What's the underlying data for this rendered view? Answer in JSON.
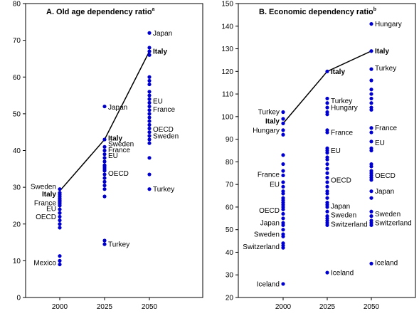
{
  "chart_data": [
    {
      "type": "scatter",
      "title": "A. Old age dependency ratio",
      "title_sup": "a",
      "categories": [
        "2000",
        "2025",
        "2050"
      ],
      "ylim": [
        0,
        80
      ],
      "yticks": [
        0,
        10,
        20,
        30,
        40,
        50,
        60,
        70,
        80
      ],
      "grid": false,
      "line_color": "#000000",
      "point_color": "#0000cc",
      "italy_line": {
        "name": "Italy",
        "values": [
          29,
          43,
          67
        ]
      },
      "points": {
        "2000": [
          9,
          10,
          11.3,
          19,
          20,
          21,
          22,
          23,
          24,
          25,
          25.5,
          26,
          26.5,
          27,
          27.5,
          28,
          28.5,
          29.5
        ],
        "2025": [
          14.5,
          15.5,
          27.5,
          29.5,
          30.5,
          31.5,
          32.5,
          33.5,
          34.5,
          35,
          35.5,
          36,
          37,
          38,
          39,
          40,
          41,
          43,
          52
        ],
        "2050": [
          29.5,
          33.5,
          38,
          42,
          43,
          44,
          45,
          46,
          47,
          48,
          49,
          50,
          51,
          52,
          53,
          54,
          55,
          56,
          58,
          59,
          60,
          66,
          67,
          68,
          72
        ]
      },
      "labels": [
        {
          "text": "Mexico",
          "cat": "2000",
          "y": 9.5,
          "side": "left",
          "bold": false
        },
        {
          "text": "OECD",
          "cat": "2000",
          "y": 22,
          "side": "left",
          "bold": false
        },
        {
          "text": "EU",
          "cat": "2000",
          "y": 24.2,
          "side": "left",
          "bold": false
        },
        {
          "text": "France",
          "cat": "2000",
          "y": 25.8,
          "side": "left",
          "bold": false
        },
        {
          "text": "Italy",
          "cat": "2000",
          "y": 28.2,
          "side": "left",
          "bold": true
        },
        {
          "text": "Sweden",
          "cat": "2000",
          "y": 30.2,
          "side": "left",
          "bold": false
        },
        {
          "text": "Turkey",
          "cat": "2025",
          "y": 14.5,
          "side": "right",
          "bold": false
        },
        {
          "text": "OECD",
          "cat": "2025",
          "y": 33.8,
          "side": "right",
          "bold": false
        },
        {
          "text": "EU",
          "cat": "2025",
          "y": 38.6,
          "side": "right",
          "bold": false
        },
        {
          "text": "France",
          "cat": "2025",
          "y": 40.2,
          "side": "right",
          "bold": false
        },
        {
          "text": "Sweden",
          "cat": "2025",
          "y": 41.8,
          "side": "right",
          "bold": false
        },
        {
          "text": "Italy",
          "cat": "2025",
          "y": 43.4,
          "side": "right",
          "bold": true
        },
        {
          "text": "Japan",
          "cat": "2025",
          "y": 51.8,
          "side": "right",
          "bold": false
        },
        {
          "text": "Turkey",
          "cat": "2050",
          "y": 29.5,
          "side": "right",
          "bold": false
        },
        {
          "text": "Sweden",
          "cat": "2050",
          "y": 44,
          "side": "right",
          "bold": false
        },
        {
          "text": "OECD",
          "cat": "2050",
          "y": 45.8,
          "side": "right",
          "bold": false
        },
        {
          "text": "France",
          "cat": "2050",
          "y": 51.2,
          "side": "right",
          "bold": false
        },
        {
          "text": "EU",
          "cat": "2050",
          "y": 53.5,
          "side": "right",
          "bold": false
        },
        {
          "text": "Italy",
          "cat": "2050",
          "y": 67,
          "side": "right",
          "bold": true
        },
        {
          "text": "Japan",
          "cat": "2050",
          "y": 72,
          "side": "right",
          "bold": false
        }
      ]
    },
    {
      "type": "scatter",
      "title": "B. Economic dependency ratio",
      "title_sup": "b",
      "categories": [
        "2000",
        "2025",
        "2050"
      ],
      "ylim": [
        20,
        150
      ],
      "yticks": [
        20,
        30,
        40,
        50,
        60,
        70,
        80,
        90,
        100,
        110,
        120,
        130,
        140,
        150
      ],
      "grid": false,
      "line_color": "#000000",
      "point_color": "#0000cc",
      "italy_line": {
        "name": "Italy",
        "values": [
          97,
          120,
          129
        ]
      },
      "points": {
        "2000": [
          26,
          42,
          43,
          44,
          47,
          48,
          50,
          52,
          53,
          55,
          57,
          59,
          60,
          61,
          62,
          63,
          64,
          66,
          67,
          69,
          71,
          74,
          76,
          79,
          83,
          92,
          94,
          97,
          99,
          102
        ],
        "2025": [
          31,
          52,
          53,
          54,
          55,
          56,
          58,
          60,
          61,
          62,
          64,
          66,
          67,
          69,
          71,
          73,
          75,
          77,
          79,
          81,
          82,
          84,
          85,
          86,
          93,
          94,
          101,
          102,
          104,
          106,
          108,
          120
        ],
        "2050": [
          35,
          52,
          53,
          54,
          56,
          58,
          64,
          67,
          72,
          73,
          74,
          75,
          76,
          78,
          79,
          85,
          86,
          89,
          93,
          95,
          103,
          104,
          106,
          108,
          110,
          112,
          116,
          121,
          129,
          141
        ]
      },
      "labels": [
        {
          "text": "Iceland",
          "cat": "2000",
          "y": 26,
          "side": "left",
          "bold": false
        },
        {
          "text": "Switzerland",
          "cat": "2000",
          "y": 42.5,
          "side": "left",
          "bold": false
        },
        {
          "text": "Sweden",
          "cat": "2000",
          "y": 48,
          "side": "left",
          "bold": false
        },
        {
          "text": "Japan",
          "cat": "2000",
          "y": 53,
          "side": "left",
          "bold": false
        },
        {
          "text": "OECD",
          "cat": "2000",
          "y": 58.5,
          "side": "left",
          "bold": false
        },
        {
          "text": "EU",
          "cat": "2000",
          "y": 70,
          "side": "left",
          "bold": false
        },
        {
          "text": "France",
          "cat": "2000",
          "y": 74.5,
          "side": "left",
          "bold": false
        },
        {
          "text": "Hungary",
          "cat": "2000",
          "y": 94,
          "side": "left",
          "bold": false
        },
        {
          "text": "Italy",
          "cat": "2000",
          "y": 98,
          "side": "left",
          "bold": true
        },
        {
          "text": "Turkey",
          "cat": "2000",
          "y": 102.2,
          "side": "left",
          "bold": false
        },
        {
          "text": "Iceland",
          "cat": "2025",
          "y": 31,
          "side": "right",
          "bold": false
        },
        {
          "text": "Switzerland",
          "cat": "2025",
          "y": 52.5,
          "side": "right",
          "bold": false
        },
        {
          "text": "Sweden",
          "cat": "2025",
          "y": 56.5,
          "side": "right",
          "bold": false
        },
        {
          "text": "Japan",
          "cat": "2025",
          "y": 60.5,
          "side": "right",
          "bold": false
        },
        {
          "text": "OECD",
          "cat": "2025",
          "y": 72,
          "side": "right",
          "bold": false
        },
        {
          "text": "EU",
          "cat": "2025",
          "y": 85,
          "side": "right",
          "bold": false
        },
        {
          "text": "France",
          "cat": "2025",
          "y": 93,
          "side": "right",
          "bold": false
        },
        {
          "text": "Hungary",
          "cat": "2025",
          "y": 104,
          "side": "right",
          "bold": false
        },
        {
          "text": "Turkey",
          "cat": "2025",
          "y": 107,
          "side": "right",
          "bold": false
        },
        {
          "text": "Italy",
          "cat": "2025",
          "y": 120,
          "side": "right",
          "bold": true
        },
        {
          "text": "Iceland",
          "cat": "2050",
          "y": 35.5,
          "side": "right",
          "bold": false
        },
        {
          "text": "Switzerland",
          "cat": "2050",
          "y": 53,
          "side": "right",
          "bold": false
        },
        {
          "text": "Sweden",
          "cat": "2050",
          "y": 57,
          "side": "right",
          "bold": false
        },
        {
          "text": "Japan",
          "cat": "2050",
          "y": 67,
          "side": "right",
          "bold": false
        },
        {
          "text": "OECD",
          "cat": "2050",
          "y": 74,
          "side": "right",
          "bold": false
        },
        {
          "text": "EU",
          "cat": "2050",
          "y": 88.5,
          "side": "right",
          "bold": false
        },
        {
          "text": "France",
          "cat": "2050",
          "y": 95,
          "side": "right",
          "bold": false
        },
        {
          "text": "Turkey",
          "cat": "2050",
          "y": 121.5,
          "side": "right",
          "bold": false
        },
        {
          "text": "Italy",
          "cat": "2050",
          "y": 129,
          "side": "right",
          "bold": true
        },
        {
          "text": "Hungary",
          "cat": "2050",
          "y": 141,
          "side": "right",
          "bold": false
        }
      ]
    }
  ]
}
